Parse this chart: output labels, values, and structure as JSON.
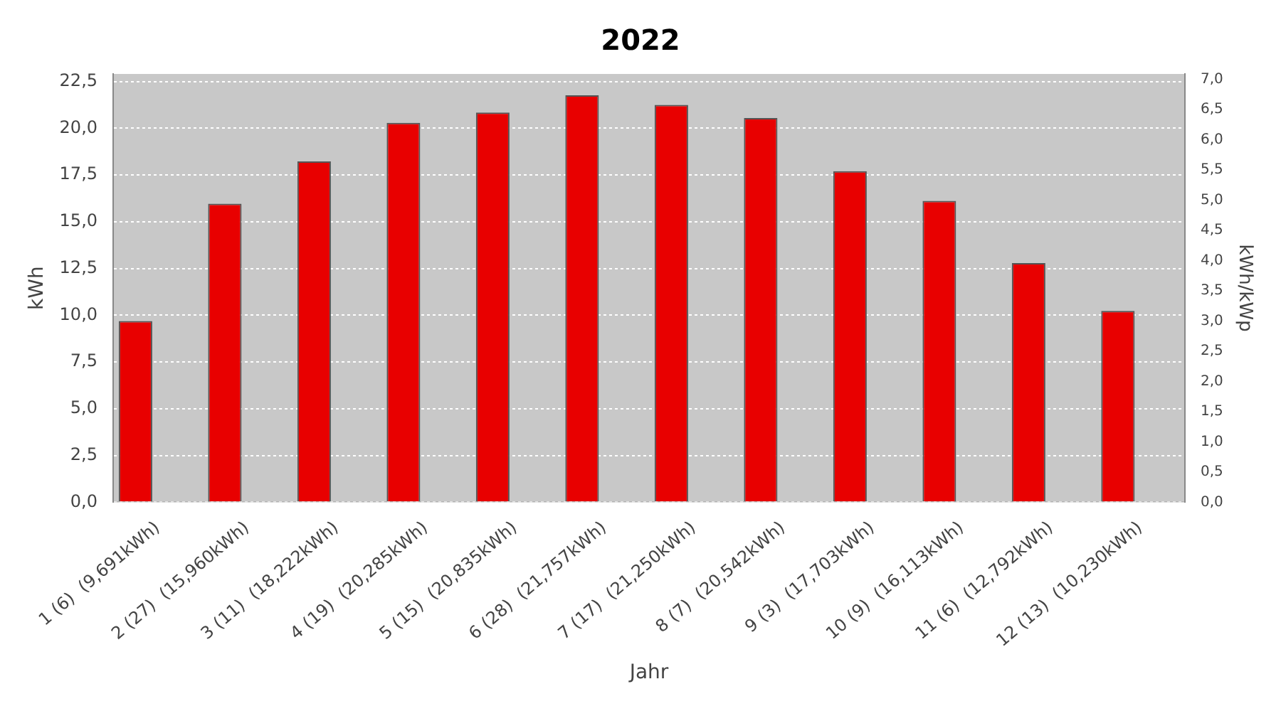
{
  "chart_data": {
    "type": "bar",
    "title": "2022",
    "xlabel": "Jahr",
    "ylabel": "kWh",
    "y2label": "kWh/kWp",
    "categories": [
      "1 (6)  (9,691kWh)",
      "2 (27)  (15,960kWh)",
      "3 (11)  (18,222kWh)",
      "4 (19)  (20,285kWh)",
      "5 (15)  (20,835kWh)",
      "6 (28)  (21,757kWh)",
      "7 (17)  (21,250kWh)",
      "8 (7)  (20,542kWh)",
      "9 (3)  (17,703kWh)",
      "10 (9)  (16,113kWh)",
      "11 (6)  (12,792kWh)",
      "12 (13)  (10,230kWh)"
    ],
    "series": [
      {
        "color": "#e80000",
        "values": [
          9.691,
          15.96,
          18.222,
          20.285,
          20.835,
          21.757,
          21.25,
          20.542,
          17.703,
          16.113,
          12.792,
          10.23
        ]
      }
    ],
    "ylim": [
      0,
      22.9
    ],
    "yticks": [
      {
        "value": 0,
        "label": "0,0"
      },
      {
        "value": 2.5,
        "label": "2,5"
      },
      {
        "value": 5,
        "label": "5,0"
      },
      {
        "value": 7.5,
        "label": "7,5"
      },
      {
        "value": 10,
        "label": "10,0"
      },
      {
        "value": 12.5,
        "label": "12,5"
      },
      {
        "value": 15,
        "label": "15,0"
      },
      {
        "value": 17.5,
        "label": "17,5"
      },
      {
        "value": 20,
        "label": "20,0"
      },
      {
        "value": 22.5,
        "label": "22,5"
      }
    ],
    "y2lim": [
      0,
      7.09
    ],
    "y2ticks": [
      {
        "value": 0,
        "label": "0,0"
      },
      {
        "value": 0.5,
        "label": "0,5"
      },
      {
        "value": 1,
        "label": "1,0"
      },
      {
        "value": 1.5,
        "label": "1,5"
      },
      {
        "value": 2,
        "label": "2,0"
      },
      {
        "value": 2.5,
        "label": "2,5"
      },
      {
        "value": 3,
        "label": "3,0"
      },
      {
        "value": 3.5,
        "label": "3,5"
      },
      {
        "value": 4,
        "label": "4,0"
      },
      {
        "value": 4.5,
        "label": "4,5"
      },
      {
        "value": 5,
        "label": "5,0"
      },
      {
        "value": 5.5,
        "label": "5,5"
      },
      {
        "value": 6,
        "label": "6,0"
      },
      {
        "value": 6.5,
        "label": "6,5"
      },
      {
        "value": 7,
        "label": "7,0"
      }
    ],
    "grid": "y"
  }
}
